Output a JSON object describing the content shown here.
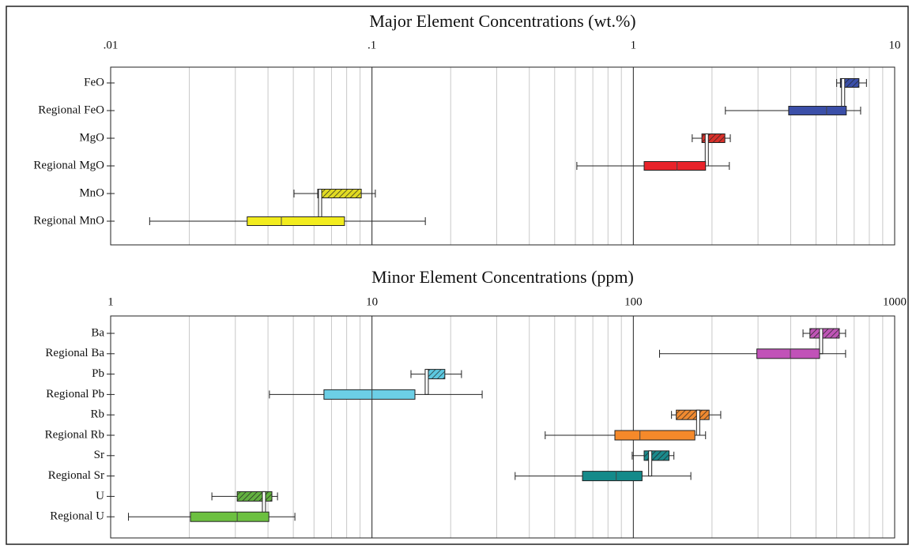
{
  "chart_data": [
    {
      "type": "box",
      "title": "Major Element Concentrations (wt.%)",
      "xscale": "log",
      "xlim": [
        0.01,
        10
      ],
      "xticks": [
        {
          "value": 0.01,
          "label": ".01"
        },
        {
          "value": 0.1,
          "label": ".1"
        },
        1,
        10
      ],
      "grid": true,
      "items": [
        {
          "label": "FeO",
          "color": "#3b4fa8",
          "hatched": true,
          "min": 6.0,
          "q1": 6.2,
          "median": 6.35,
          "q3": 7.3,
          "max": 7.8
        },
        {
          "label": "Regional FeO",
          "color": "#3b4fa8",
          "hatched": false,
          "min": 2.25,
          "q1": 3.93,
          "median": 5.49,
          "q3": 6.53,
          "max": 7.41
        },
        {
          "label": "MgO",
          "color": "#d8302a",
          "hatched": true,
          "min": 1.68,
          "q1": 1.83,
          "median": 1.91,
          "q3": 2.24,
          "max": 2.35
        },
        {
          "label": "Regional MgO",
          "color": "#e8232a",
          "hatched": false,
          "min": 0.608,
          "q1": 1.1,
          "median": 1.47,
          "q3": 1.89,
          "max": 2.33
        },
        {
          "label": "MnO",
          "color": "#e0da22",
          "hatched": true,
          "min": 0.0503,
          "q1": 0.062,
          "median": 0.0633,
          "q3": 0.091,
          "max": 0.103
        },
        {
          "label": "Regional MnO",
          "color": "#f2ec1e",
          "hatched": false,
          "min": 0.0141,
          "q1": 0.0333,
          "median": 0.045,
          "q3": 0.0785,
          "max": 0.16
        }
      ]
    },
    {
      "type": "box",
      "title": "Minor Element Concentrations (ppm)",
      "xscale": "log",
      "xlim": [
        1,
        1000
      ],
      "xticks": [
        1,
        10,
        100,
        1000
      ],
      "grid": true,
      "items": [
        {
          "label": "Ba",
          "color": "#bf55b6",
          "hatched": true,
          "min": 446,
          "q1": 474,
          "median": 523,
          "q3": 614,
          "max": 649
        },
        {
          "label": "Regional Ba",
          "color": "#c152b8",
          "hatched": false,
          "min": 126,
          "q1": 297,
          "median": 399,
          "q3": 516,
          "max": 649
        },
        {
          "label": "Pb",
          "color": "#5cc8e0",
          "hatched": true,
          "min": 14.1,
          "q1": 16.1,
          "median": 16.2,
          "q3": 19.0,
          "max": 22.0
        },
        {
          "label": "Regional Pb",
          "color": "#6ccfe6",
          "hatched": false,
          "min": 4.05,
          "q1": 6.55,
          "median": 10,
          "q3": 14.6,
          "max": 26.4
        },
        {
          "label": "Rb",
          "color": "#f08a30",
          "hatched": true,
          "min": 140,
          "q1": 146,
          "median": 177,
          "q3": 195,
          "max": 216
        },
        {
          "label": "Regional Rb",
          "color": "#f5892a",
          "hatched": false,
          "min": 46.0,
          "q1": 85,
          "median": 106,
          "q3": 172,
          "max": 189
        },
        {
          "label": "Sr",
          "color": "#1a8a8c",
          "hatched": true,
          "min": 99,
          "q1": 110,
          "median": 116,
          "q3": 137,
          "max": 143
        },
        {
          "label": "Regional Sr",
          "color": "#148a8a",
          "hatched": false,
          "min": 35.3,
          "q1": 63.9,
          "median": 86,
          "q3": 108,
          "max": 166
        },
        {
          "label": "U",
          "color": "#62b040",
          "hatched": true,
          "min": 2.44,
          "q1": 3.05,
          "median": 3.86,
          "q3": 4.14,
          "max": 4.35
        },
        {
          "label": "Regional U",
          "color": "#6cc040",
          "hatched": false,
          "min": 1.17,
          "q1": 2.02,
          "median": 3.05,
          "q3": 4.03,
          "max": 5.07
        }
      ]
    }
  ]
}
